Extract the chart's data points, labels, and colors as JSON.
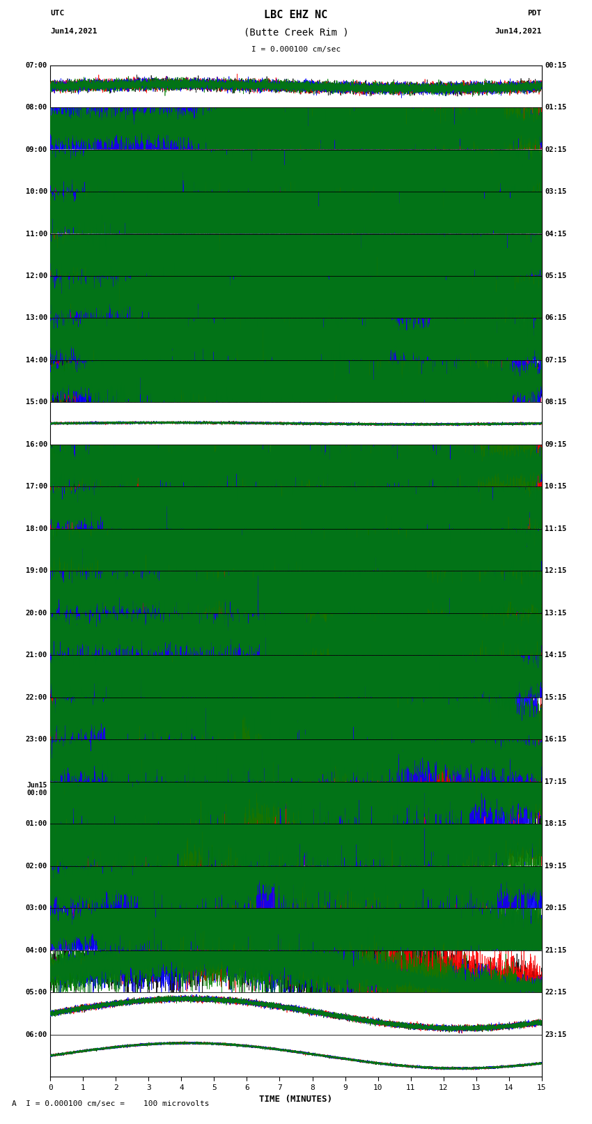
{
  "title_line1": "LBC EHZ NC",
  "title_line2": "(Butte Creek Rim )",
  "scale_label": "I = 0.000100 cm/sec",
  "footer_label": "A  I = 0.000100 cm/sec =    100 microvolts",
  "left_label_top": "UTC",
  "left_label_date": "Jun14,2021",
  "right_label_top": "PDT",
  "right_label_date": "Jun14,2021",
  "xlabel": "TIME (MINUTES)",
  "xlim": [
    0,
    15
  ],
  "xticks": [
    0,
    1,
    2,
    3,
    4,
    5,
    6,
    7,
    8,
    9,
    10,
    11,
    12,
    13,
    14,
    15
  ],
  "num_rows": 24,
  "colors": [
    "black",
    "red",
    "blue",
    "green"
  ],
  "left_times": [
    "07:00",
    "08:00",
    "09:00",
    "10:00",
    "11:00",
    "12:00",
    "13:00",
    "14:00",
    "15:00",
    "16:00",
    "17:00",
    "18:00",
    "19:00",
    "20:00",
    "21:00",
    "22:00",
    "23:00",
    "Jun15\n00:00",
    "01:00",
    "02:00",
    "03:00",
    "04:00",
    "05:00",
    "06:00"
  ],
  "right_times": [
    "00:15",
    "01:15",
    "02:15",
    "03:15",
    "04:15",
    "05:15",
    "06:15",
    "07:15",
    "08:15",
    "09:15",
    "10:15",
    "11:15",
    "12:15",
    "13:15",
    "14:15",
    "15:15",
    "16:15",
    "17:15",
    "18:15",
    "19:15",
    "20:15",
    "21:15",
    "22:15",
    "23:15"
  ],
  "bg_color": "white",
  "row_noise_amp": [
    0.12,
    0.35,
    0.48,
    0.48,
    0.48,
    0.48,
    0.48,
    0.35,
    0.04,
    0.3,
    0.48,
    0.48,
    0.48,
    0.48,
    0.48,
    0.48,
    0.48,
    0.48,
    0.48,
    0.48,
    0.38,
    0.15,
    0.06,
    0.04
  ],
  "row_drift_amp": [
    0.05,
    0.05,
    0.05,
    0.05,
    0.05,
    0.05,
    0.05,
    0.2,
    0.02,
    0.05,
    0.05,
    0.05,
    0.05,
    0.05,
    0.1,
    0.3,
    0.4,
    0.42,
    0.45,
    0.45,
    0.35,
    0.38,
    0.35,
    0.3
  ],
  "row_drift_cycles": [
    1,
    1,
    1,
    1,
    1,
    1,
    1,
    1,
    1,
    1,
    1,
    1,
    1,
    1,
    0.5,
    0.7,
    0.5,
    0.4,
    0.4,
    0.4,
    0.6,
    0.8,
    0.9,
    0.9
  ]
}
